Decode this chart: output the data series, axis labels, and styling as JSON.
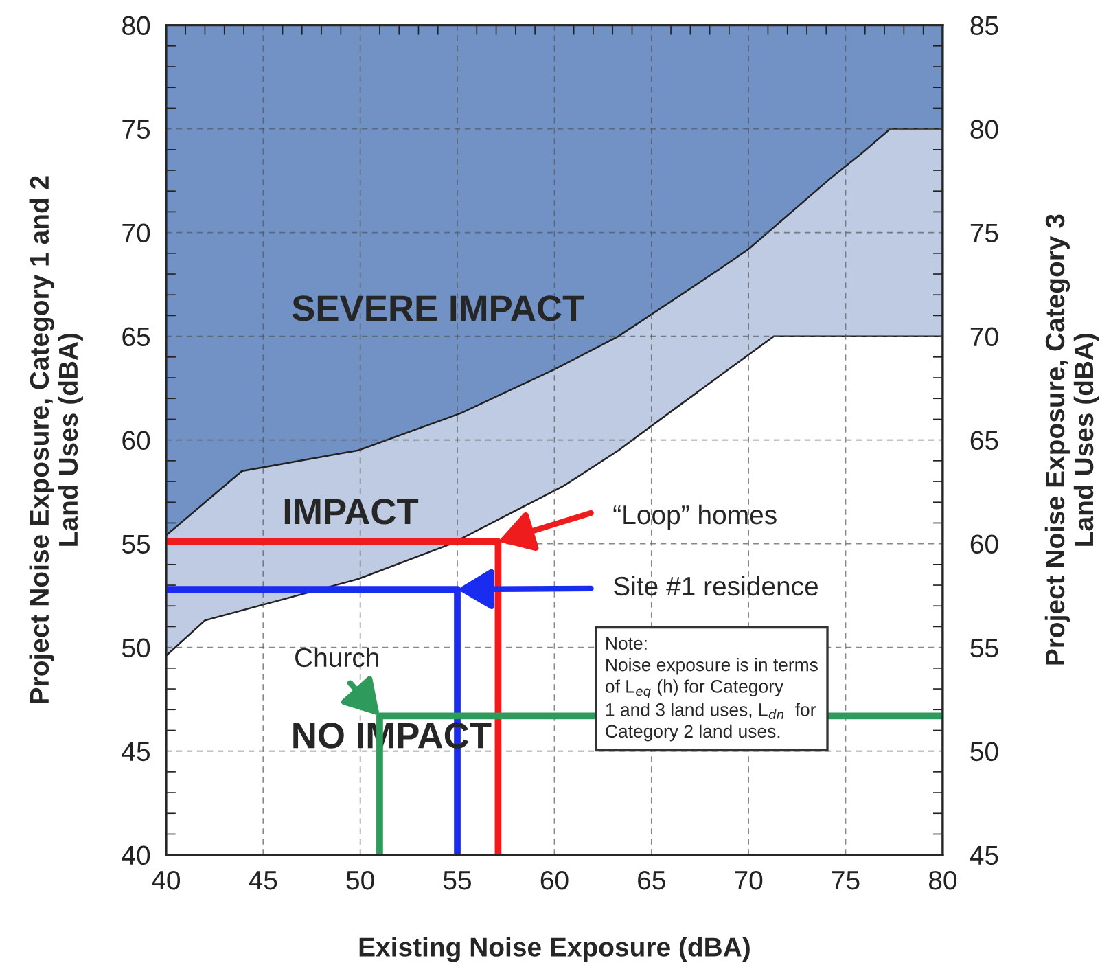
{
  "chart_data": {
    "type": "area",
    "xlabel": "Existing Noise Exposure (dBA)",
    "ylabel": "Project Noise Exposure, Category 1 and 2\nLand Uses (dBA)",
    "y2label": "Project Noise Exposure, Category 3\nLand Uses (dBA)",
    "xlim": [
      40,
      80
    ],
    "xticks": [
      40,
      45,
      50,
      55,
      60,
      65,
      70,
      75,
      80
    ],
    "ylim": [
      40,
      80
    ],
    "yticks": [
      40,
      45,
      50,
      55,
      60,
      65,
      70,
      75,
      80
    ],
    "y2lim": [
      45,
      85
    ],
    "y2ticks": [
      45,
      50,
      55,
      60,
      65,
      70,
      75,
      80,
      85
    ],
    "grid": true,
    "series": [
      {
        "color": "#7292c6",
        "x": [
          40,
          80
        ],
        "values": [
          80,
          80
        ]
      },
      {
        "color": "#bfcbe3",
        "x": [
          40,
          43.9,
          49.9,
          55.2,
          60,
          63.3,
          68.6,
          70,
          74.2,
          75.8,
          77.3,
          80
        ],
        "values": [
          55.4,
          58.5,
          59.5,
          61.3,
          63.4,
          65,
          68.3,
          69.2,
          72.6,
          73.8,
          75,
          75
        ]
      },
      {
        "color": "#ffffff",
        "x": [
          40,
          42,
          49.9,
          54.7,
          60.5,
          63.3,
          65.9,
          71.3,
          80
        ],
        "values": [
          49.6,
          51.3,
          53.3,
          55.0,
          57.8,
          59.5,
          61.3,
          65,
          65
        ]
      },
      {
        "type": "line",
        "color": "#ee1c1c",
        "x": [
          40,
          57.1,
          57.1
        ],
        "values": [
          55.1,
          55.1,
          40
        ]
      },
      {
        "type": "line",
        "color": "#1a2cf0",
        "x": [
          40,
          55,
          55
        ],
        "values": [
          52.8,
          52.8,
          40
        ]
      },
      {
        "type": "line",
        "color": "#2e9a5c",
        "x": [
          80,
          51,
          51
        ],
        "values": [
          46.7,
          46.7,
          40
        ]
      }
    ],
    "annotations": [
      "SEVERE IMPACT",
      "IMPACT",
      "NO IMPACT",
      "“Loop” homes",
      "Site #1 residence",
      "Church",
      "Note:\nNoise exposure is in terms\nof L$_{eq}$ (h) for Category\n1 and 3 land uses, L$_{dn}$  for\nCategory 2 land uses."
    ]
  }
}
